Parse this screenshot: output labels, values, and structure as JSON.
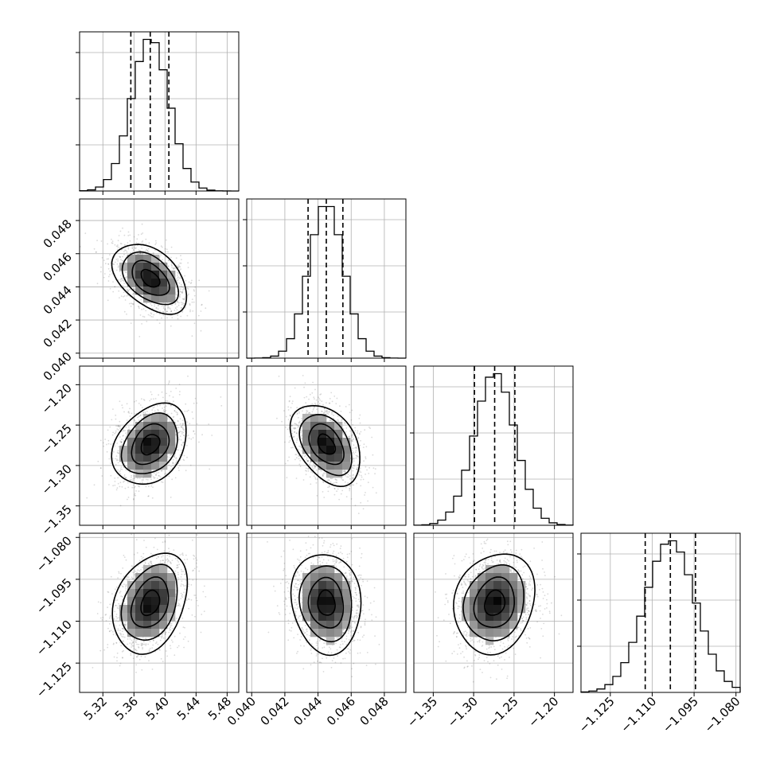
{
  "chart_data": {
    "type": "corner",
    "n_params": 4,
    "params": [
      {
        "name": "",
        "range": [
          5.29,
          5.495
        ],
        "ticks": [
          5.32,
          5.36,
          5.4,
          5.44,
          5.48
        ],
        "tick_labels": [
          "5.32",
          "5.36",
          "5.40",
          "5.44",
          "5.48"
        ],
        "median": 5.381,
        "quantiles": [
          5.356,
          5.381,
          5.405
        ],
        "std": 0.024
      },
      {
        "name": "",
        "range": [
          0.0397,
          0.0493
        ],
        "ticks": [
          0.04,
          0.042,
          0.044,
          0.046,
          0.048
        ],
        "tick_labels": [
          "0.040",
          "0.042",
          "0.044",
          "0.046",
          "0.048"
        ],
        "median": 0.0445,
        "quantiles": [
          0.0434,
          0.0445,
          0.0455
        ],
        "std": 0.00105
      },
      {
        "name": "",
        "range": [
          -1.374,
          -1.177
        ],
        "ticks": [
          -1.35,
          -1.3,
          -1.25,
          -1.2
        ],
        "tick_labels": [
          "−1.35",
          "−1.30",
          "−1.25",
          "−1.20"
        ],
        "median": -1.274,
        "quantiles": [
          -1.299,
          -1.274,
          -1.249
        ],
        "std": 0.025
      },
      {
        "name": "",
        "range": [
          -1.1355,
          -1.0785
        ],
        "ticks": [
          -1.125,
          -1.11,
          -1.095,
          -1.08
        ],
        "tick_labels": [
          "−1.125",
          "−1.110",
          "−1.095",
          "−1.080"
        ],
        "median": -1.1035,
        "quantiles": [
          -1.1125,
          -1.1035,
          -1.0945
        ],
        "std": 0.009
      }
    ],
    "correlations": [
      [
        1.0,
        -0.45,
        0.3,
        0.3
      ],
      [
        -0.45,
        1.0,
        -0.4,
        -0.1
      ],
      [
        0.3,
        -0.4,
        1.0,
        0.15
      ],
      [
        0.3,
        -0.1,
        0.15,
        1.0
      ]
    ],
    "histogram_bins": 20,
    "contour_levels_sigma": [
      0.5,
      1.0,
      1.5,
      2.0
    ],
    "grid": true,
    "quantile_line_style": "dashed",
    "colors": {
      "line": "#000000",
      "grid": "#b0b0b0",
      "scatter": "#555555",
      "density_dark": "#000000",
      "density_light": "#ffffff"
    }
  }
}
